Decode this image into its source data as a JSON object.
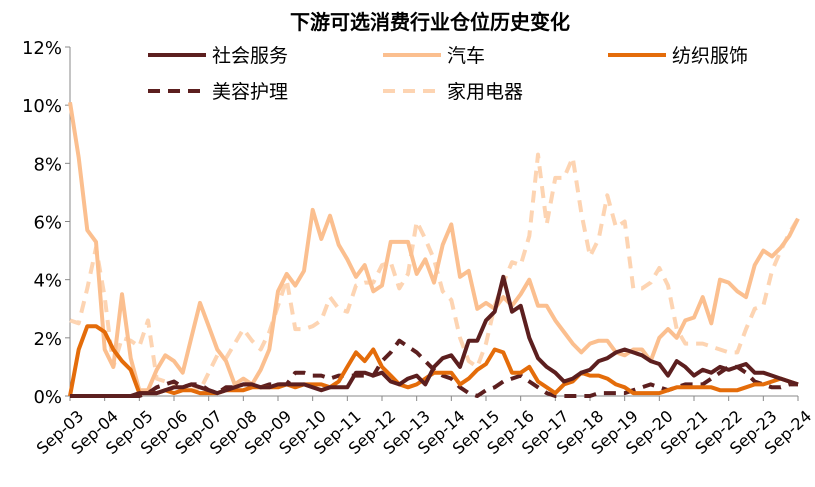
{
  "chart_data": {
    "type": "line",
    "title": "下游可选消费行业仓位历史变化",
    "xlabel": "",
    "ylabel": "",
    "ylim": [
      0,
      12
    ],
    "yticks": [
      "0%",
      "2%",
      "4%",
      "6%",
      "8%",
      "10%",
      "12%"
    ],
    "xticks": [
      "Sep-03",
      "Sep-04",
      "Sep-05",
      "Sep-06",
      "Sep-07",
      "Sep-08",
      "Sep-09",
      "Sep-10",
      "Sep-11",
      "Sep-12",
      "Sep-13",
      "Sep-14",
      "Sep-15",
      "Sep-16",
      "Sep-17",
      "Sep-18",
      "Sep-19",
      "Sep-20",
      "Sep-21",
      "Sep-22",
      "Sep-23",
      "Sep-24"
    ],
    "grid": false,
    "legend": "top",
    "x": [
      "Sep-03",
      "Dec-03",
      "Mar-04",
      "Jun-04",
      "Sep-04",
      "Dec-04",
      "Mar-05",
      "Jun-05",
      "Sep-05",
      "Dec-05",
      "Mar-06",
      "Jun-06",
      "Sep-06",
      "Dec-06",
      "Mar-07",
      "Jun-07",
      "Sep-07",
      "Dec-07",
      "Mar-08",
      "Jun-08",
      "Sep-08",
      "Dec-08",
      "Mar-09",
      "Jun-09",
      "Sep-09",
      "Dec-09",
      "Mar-10",
      "Jun-10",
      "Sep-10",
      "Dec-10",
      "Mar-11",
      "Jun-11",
      "Sep-11",
      "Dec-11",
      "Mar-12",
      "Jun-12",
      "Sep-12",
      "Dec-12",
      "Mar-13",
      "Jun-13",
      "Sep-13",
      "Dec-13",
      "Mar-14",
      "Jun-14",
      "Sep-14",
      "Dec-14",
      "Mar-15",
      "Jun-15",
      "Sep-15",
      "Dec-15",
      "Mar-16",
      "Jun-16",
      "Sep-16",
      "Dec-16",
      "Mar-17",
      "Jun-17",
      "Sep-17",
      "Dec-17",
      "Mar-18",
      "Jun-18",
      "Sep-18",
      "Dec-18",
      "Mar-19",
      "Jun-19",
      "Sep-19",
      "Dec-19",
      "Mar-20",
      "Jun-20",
      "Sep-20",
      "Dec-20",
      "Mar-21",
      "Jun-21",
      "Sep-21",
      "Dec-21",
      "Mar-22",
      "Jun-22",
      "Sep-22",
      "Dec-22",
      "Mar-23",
      "Jun-23",
      "Sep-23",
      "Dec-23",
      "Mar-24",
      "Jun-24",
      "Sep-24"
    ],
    "series": [
      {
        "name": "社会服务",
        "color": "#5c1f1f",
        "dash": false,
        "values": [
          0,
          0,
          0,
          0,
          0,
          0,
          0,
          0,
          0.1,
          0.1,
          0.1,
          0.2,
          0.3,
          0.3,
          0.4,
          0.3,
          0.2,
          0.1,
          0.2,
          0.3,
          0.4,
          0.4,
          0.3,
          0.3,
          0.4,
          0.4,
          0.4,
          0.4,
          0.3,
          0.2,
          0.3,
          0.3,
          0.3,
          0.8,
          0.8,
          0.7,
          0.8,
          0.5,
          0.4,
          0.6,
          0.7,
          0.4,
          1.0,
          1.3,
          1.4,
          1.0,
          1.9,
          1.9,
          2.6,
          2.9,
          4.1,
          2.9,
          3.1,
          2.0,
          1.3,
          1.0,
          0.8,
          0.5,
          0.6,
          0.8,
          0.9,
          1.2,
          1.3,
          1.5,
          1.6,
          1.5,
          1.4,
          1.2,
          1.1,
          0.7,
          1.2,
          1.0,
          0.7,
          0.9,
          0.8,
          1.0,
          0.9,
          1.0,
          1.1,
          0.8,
          0.8,
          0.7,
          0.6,
          0.5,
          0.4
        ]
      },
      {
        "name": "汽车",
        "color": "#fbbf8f",
        "dash": false,
        "values": [
          10.1,
          8.2,
          5.7,
          5.3,
          1.6,
          1.0,
          3.5,
          1.3,
          0.2,
          0.2,
          0.9,
          1.4,
          1.2,
          0.8,
          2.0,
          3.2,
          2.4,
          1.6,
          1.2,
          0.4,
          0.6,
          0.4,
          0.9,
          1.6,
          3.6,
          4.2,
          3.8,
          4.3,
          6.4,
          5.4,
          6.2,
          5.2,
          4.7,
          4.1,
          4.5,
          3.6,
          3.8,
          5.3,
          5.3,
          5.3,
          4.2,
          4.7,
          3.9,
          5.2,
          5.9,
          4.1,
          4.3,
          3.0,
          3.2,
          3.0,
          3.4,
          3.1,
          3.5,
          4.0,
          3.1,
          3.1,
          2.6,
          2.2,
          1.8,
          1.5,
          1.8,
          1.9,
          1.9,
          1.5,
          1.4,
          1.6,
          1.6,
          1.2,
          2.0,
          2.3,
          2.0,
          2.6,
          2.7,
          3.4,
          2.5,
          4.0,
          3.9,
          3.6,
          3.4,
          4.5,
          5.0,
          4.8,
          5.1,
          5.5,
          6.1
        ]
      },
      {
        "name": "纺织服饰",
        "color": "#e46c0a",
        "dash": false,
        "values": [
          0,
          1.6,
          2.4,
          2.4,
          2.2,
          1.6,
          1.2,
          0.9,
          0.1,
          0.1,
          0.1,
          0.2,
          0.1,
          0.2,
          0.2,
          0.1,
          0.1,
          0.1,
          0.2,
          0.2,
          0.2,
          0.3,
          0.3,
          0.3,
          0.3,
          0.4,
          0.3,
          0.4,
          0.4,
          0.4,
          0.3,
          0.5,
          1.0,
          1.5,
          1.2,
          1.6,
          1.0,
          0.7,
          0.4,
          0.3,
          0.4,
          0.6,
          0.8,
          0.8,
          0.8,
          0.4,
          0.6,
          0.9,
          1.1,
          1.6,
          1.5,
          0.8,
          0.8,
          1.0,
          0.5,
          0.3,
          0.1,
          0.4,
          0.5,
          0.8,
          0.7,
          0.7,
          0.6,
          0.4,
          0.3,
          0.1,
          0.1,
          0.1,
          0.1,
          0.2,
          0.3,
          0.3,
          0.3,
          0.3,
          0.3,
          0.2,
          0.2,
          0.2,
          0.3,
          0.4,
          0.4,
          0.5,
          0.6,
          0.5,
          0.4
        ]
      },
      {
        "name": "美容护理",
        "color": "#5c1f1f",
        "dash": true,
        "values": [
          0,
          0,
          0,
          0,
          0,
          0,
          0,
          0,
          0,
          0.1,
          0.3,
          0.4,
          0.5,
          0.3,
          0.4,
          0.4,
          0.2,
          0.1,
          0.3,
          0.3,
          0.4,
          0.4,
          0.3,
          0.4,
          0.4,
          0.4,
          0.8,
          0.8,
          0.7,
          0.7,
          0.6,
          0.7,
          0.7,
          0.7,
          0.7,
          0.7,
          1.2,
          1.5,
          1.9,
          1.7,
          1.5,
          1.2,
          0.9,
          0.7,
          0.6,
          0.3,
          0.1,
          0.0,
          0.2,
          0.3,
          0.5,
          0.6,
          0.7,
          0.5,
          0.3,
          0.1,
          0,
          0,
          0,
          0,
          0,
          0.1,
          0.1,
          0.1,
          0.1,
          0.2,
          0.3,
          0.4,
          0.3,
          0.2,
          0.3,
          0.4,
          0.4,
          0.4,
          0.6,
          0.8,
          1.0,
          1.0,
          0.8,
          0.5,
          0.4,
          0.3,
          0.3,
          0.4,
          0.4
        ]
      },
      {
        "name": "家用电器",
        "color": "#fdd4b2",
        "dash": true,
        "values": [
          2.6,
          2.5,
          3.7,
          5.1,
          3.4,
          1.0,
          2.0,
          1.9,
          1.7,
          2.6,
          0.6,
          0.5,
          0.4,
          0.2,
          0.4,
          0.2,
          0.8,
          1.4,
          1.3,
          1.8,
          2.3,
          1.9,
          1.6,
          2.2,
          3.1,
          4.0,
          2.3,
          2.3,
          2.4,
          2.6,
          3.4,
          3.0,
          2.9,
          3.8,
          3.9,
          3.9,
          4.5,
          4.6,
          3.7,
          4.2,
          6.0,
          5.4,
          4.7,
          3.6,
          3.3,
          2.0,
          1.2,
          1.0,
          1.8,
          3.1,
          3.9,
          4.6,
          4.5,
          5.5,
          8.3,
          5.9,
          7.5,
          7.5,
          8.2,
          6.3,
          4.8,
          5.4,
          6.9,
          5.8,
          6.0,
          3.7,
          3.7,
          3.9,
          4.4,
          3.8,
          2.3,
          1.8,
          1.8,
          1.8,
          1.7,
          1.6,
          1.5,
          1.5,
          2.3,
          3.0,
          3.1,
          4.3,
          5.0,
          5.6,
          6.1
        ]
      }
    ]
  }
}
